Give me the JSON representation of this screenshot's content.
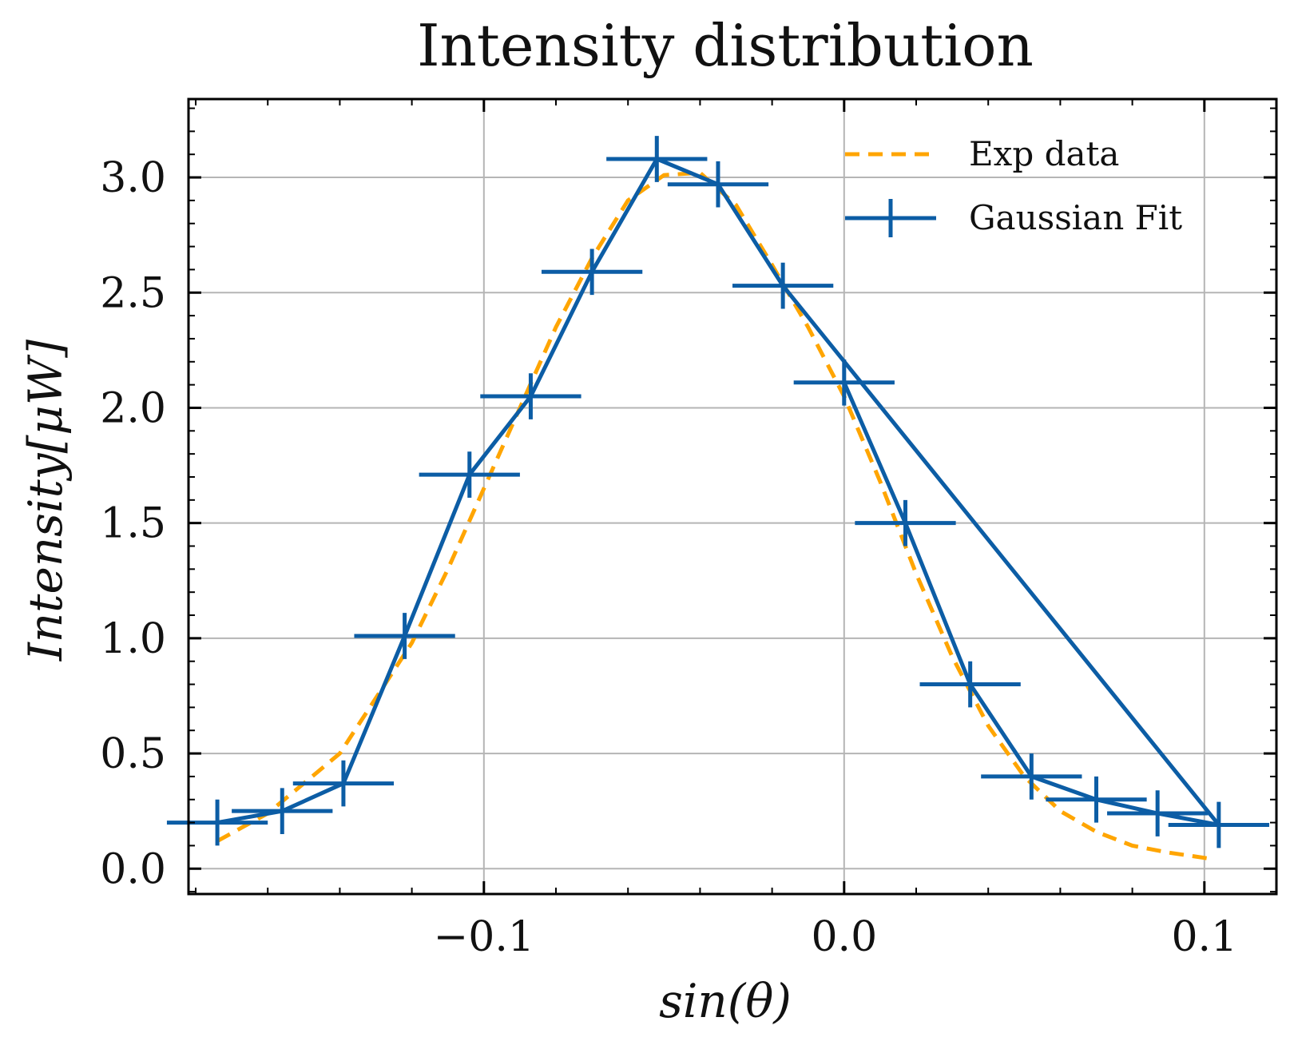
{
  "chart_data": {
    "type": "line",
    "title": "Intensity distribution",
    "xlabel": "sin(θ)",
    "ylabel": "Intensity[μW]",
    "xlim": [
      -0.182,
      0.12
    ],
    "ylim": [
      -0.11,
      3.34
    ],
    "x_ticks": [
      -0.1,
      0.0,
      0.1
    ],
    "x_tick_labels": [
      "−0.1",
      "0.0",
      "0.1"
    ],
    "y_ticks": [
      0.0,
      0.5,
      1.0,
      1.5,
      2.0,
      2.5,
      3.0
    ],
    "y_tick_labels": [
      "0.0",
      "0.5",
      "1.0",
      "1.5",
      "2.0",
      "2.5",
      "3.0"
    ],
    "x_minor_ticks": [
      -0.18,
      -0.16,
      -0.14,
      -0.12,
      -0.08,
      -0.06,
      -0.04,
      -0.02,
      0.02,
      0.04,
      0.06,
      0.08,
      0.12
    ],
    "y_minor_ticks": [
      -0.1,
      0.1,
      0.2,
      0.3,
      0.4,
      0.6,
      0.7,
      0.8,
      0.9,
      1.1,
      1.2,
      1.3,
      1.4,
      1.6,
      1.7,
      1.8,
      1.9,
      2.1,
      2.2,
      2.3,
      2.4,
      2.6,
      2.7,
      2.8,
      2.9,
      3.1,
      3.2,
      3.3
    ],
    "grid": true,
    "legend_position": "top-right",
    "series": [
      {
        "name": "Exp data",
        "style": "dashed",
        "color": "#FFA500",
        "x": [
          -0.174,
          -0.16,
          -0.14,
          -0.12,
          -0.11,
          -0.1,
          -0.09,
          -0.08,
          -0.07,
          -0.06,
          -0.05,
          -0.04,
          -0.03,
          -0.02,
          -0.01,
          0.0,
          0.01,
          0.02,
          0.03,
          0.04,
          0.05,
          0.06,
          0.07,
          0.08,
          0.09,
          0.103
        ],
        "y": [
          0.12,
          0.24,
          0.5,
          0.98,
          1.3,
          1.65,
          2.0,
          2.35,
          2.65,
          2.9,
          3.01,
          3.02,
          2.88,
          2.62,
          2.35,
          2.05,
          1.68,
          1.28,
          0.92,
          0.62,
          0.4,
          0.25,
          0.16,
          0.1,
          0.07,
          0.04
        ]
      },
      {
        "name": "Gaussian Fit",
        "style": "solid-errorbar",
        "color": "#0C5DA5",
        "x": [
          -0.174,
          -0.156,
          -0.139,
          -0.122,
          -0.104,
          -0.087,
          -0.07,
          -0.052,
          -0.035,
          -0.017,
          0.0,
          0.017,
          0.035,
          0.052,
          0.07,
          0.087,
          0.104
        ],
        "y": [
          0.2,
          0.25,
          0.37,
          1.01,
          1.71,
          2.05,
          2.59,
          3.08,
          2.97,
          2.53,
          2.11,
          1.5,
          0.8,
          0.4,
          0.3,
          0.24,
          0.19
        ],
        "xerr": [
          0.014,
          0.014,
          0.014,
          0.014,
          0.014,
          0.014,
          0.014,
          0.014,
          0.014,
          0.014,
          0.014,
          0.014,
          0.014,
          0.014,
          0.014,
          0.014,
          0.014
        ],
        "yerr": [
          0.1,
          0.1,
          0.1,
          0.1,
          0.1,
          0.1,
          0.1,
          0.1,
          0.1,
          0.1,
          0.1,
          0.1,
          0.1,
          0.1,
          0.1,
          0.1,
          0.1
        ],
        "path_order": [
          0,
          1,
          2,
          3,
          4,
          5,
          6,
          7,
          8,
          9,
          16,
          15,
          14,
          13,
          12,
          11,
          10
        ]
      }
    ]
  }
}
